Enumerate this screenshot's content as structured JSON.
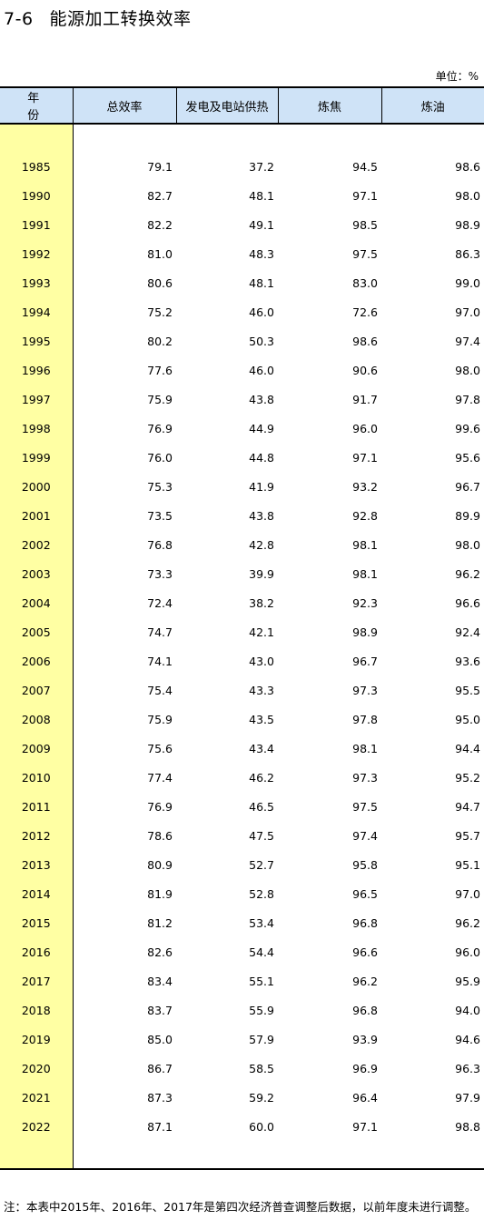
{
  "title": {
    "number": "7-6",
    "text": "能源加工转换效率"
  },
  "unit": "单位：%",
  "table": {
    "headers": [
      "年　份",
      "总效率",
      "发电及电站供热",
      "炼焦",
      "炼油"
    ],
    "rows": [
      [
        "1985",
        "79.1",
        "37.2",
        "94.5",
        "98.6"
      ],
      [
        "1990",
        "82.7",
        "48.1",
        "97.1",
        "98.0"
      ],
      [
        "1991",
        "82.2",
        "49.1",
        "98.5",
        "98.9"
      ],
      [
        "1992",
        "81.0",
        "48.3",
        "97.5",
        "86.3"
      ],
      [
        "1993",
        "80.6",
        "48.1",
        "83.0",
        "99.0"
      ],
      [
        "1994",
        "75.2",
        "46.0",
        "72.6",
        "97.0"
      ],
      [
        "1995",
        "80.2",
        "50.3",
        "98.6",
        "97.4"
      ],
      [
        "1996",
        "77.6",
        "46.0",
        "90.6",
        "98.0"
      ],
      [
        "1997",
        "75.9",
        "43.8",
        "91.7",
        "97.8"
      ],
      [
        "1998",
        "76.9",
        "44.9",
        "96.0",
        "99.6"
      ],
      [
        "1999",
        "76.0",
        "44.8",
        "97.1",
        "95.6"
      ],
      [
        "2000",
        "75.3",
        "41.9",
        "93.2",
        "96.7"
      ],
      [
        "2001",
        "73.5",
        "43.8",
        "92.8",
        "89.9"
      ],
      [
        "2002",
        "76.8",
        "42.8",
        "98.1",
        "98.0"
      ],
      [
        "2003",
        "73.3",
        "39.9",
        "98.1",
        "96.2"
      ],
      [
        "2004",
        "72.4",
        "38.2",
        "92.3",
        "96.6"
      ],
      [
        "2005",
        "74.7",
        "42.1",
        "98.9",
        "92.4"
      ],
      [
        "2006",
        "74.1",
        "43.0",
        "96.7",
        "93.6"
      ],
      [
        "2007",
        "75.4",
        "43.3",
        "97.3",
        "95.5"
      ],
      [
        "2008",
        "75.9",
        "43.5",
        "97.8",
        "95.0"
      ],
      [
        "2009",
        "75.6",
        "43.4",
        "98.1",
        "94.4"
      ],
      [
        "2010",
        "77.4",
        "46.2",
        "97.3",
        "95.2"
      ],
      [
        "2011",
        "76.9",
        "46.5",
        "97.5",
        "94.7"
      ],
      [
        "2012",
        "78.6",
        "47.5",
        "97.4",
        "95.7"
      ],
      [
        "2013",
        "80.9",
        "52.7",
        "95.8",
        "95.1"
      ],
      [
        "2014",
        "81.9",
        "52.8",
        "96.5",
        "97.0"
      ],
      [
        "2015",
        "81.2",
        "53.4",
        "96.8",
        "96.2"
      ],
      [
        "2016",
        "82.6",
        "54.4",
        "96.6",
        "96.0"
      ],
      [
        "2017",
        "83.4",
        "55.1",
        "96.2",
        "95.9"
      ],
      [
        "2018",
        "83.7",
        "55.9",
        "96.8",
        "94.0"
      ],
      [
        "2019",
        "85.0",
        "57.9",
        "93.9",
        "94.6"
      ],
      [
        "2020",
        "86.7",
        "58.5",
        "96.9",
        "96.3"
      ],
      [
        "2021",
        "87.3",
        "59.2",
        "96.4",
        "97.9"
      ],
      [
        "2022",
        "87.1",
        "60.0",
        "97.1",
        "98.8"
      ]
    ]
  },
  "note": "注：本表中2015年、2016年、2017年是第四次经济普查调整后数据，以前年度未进行调整。",
  "colors": {
    "header_bg": "#cfe3f7",
    "year_bg": "#ffffa3"
  }
}
